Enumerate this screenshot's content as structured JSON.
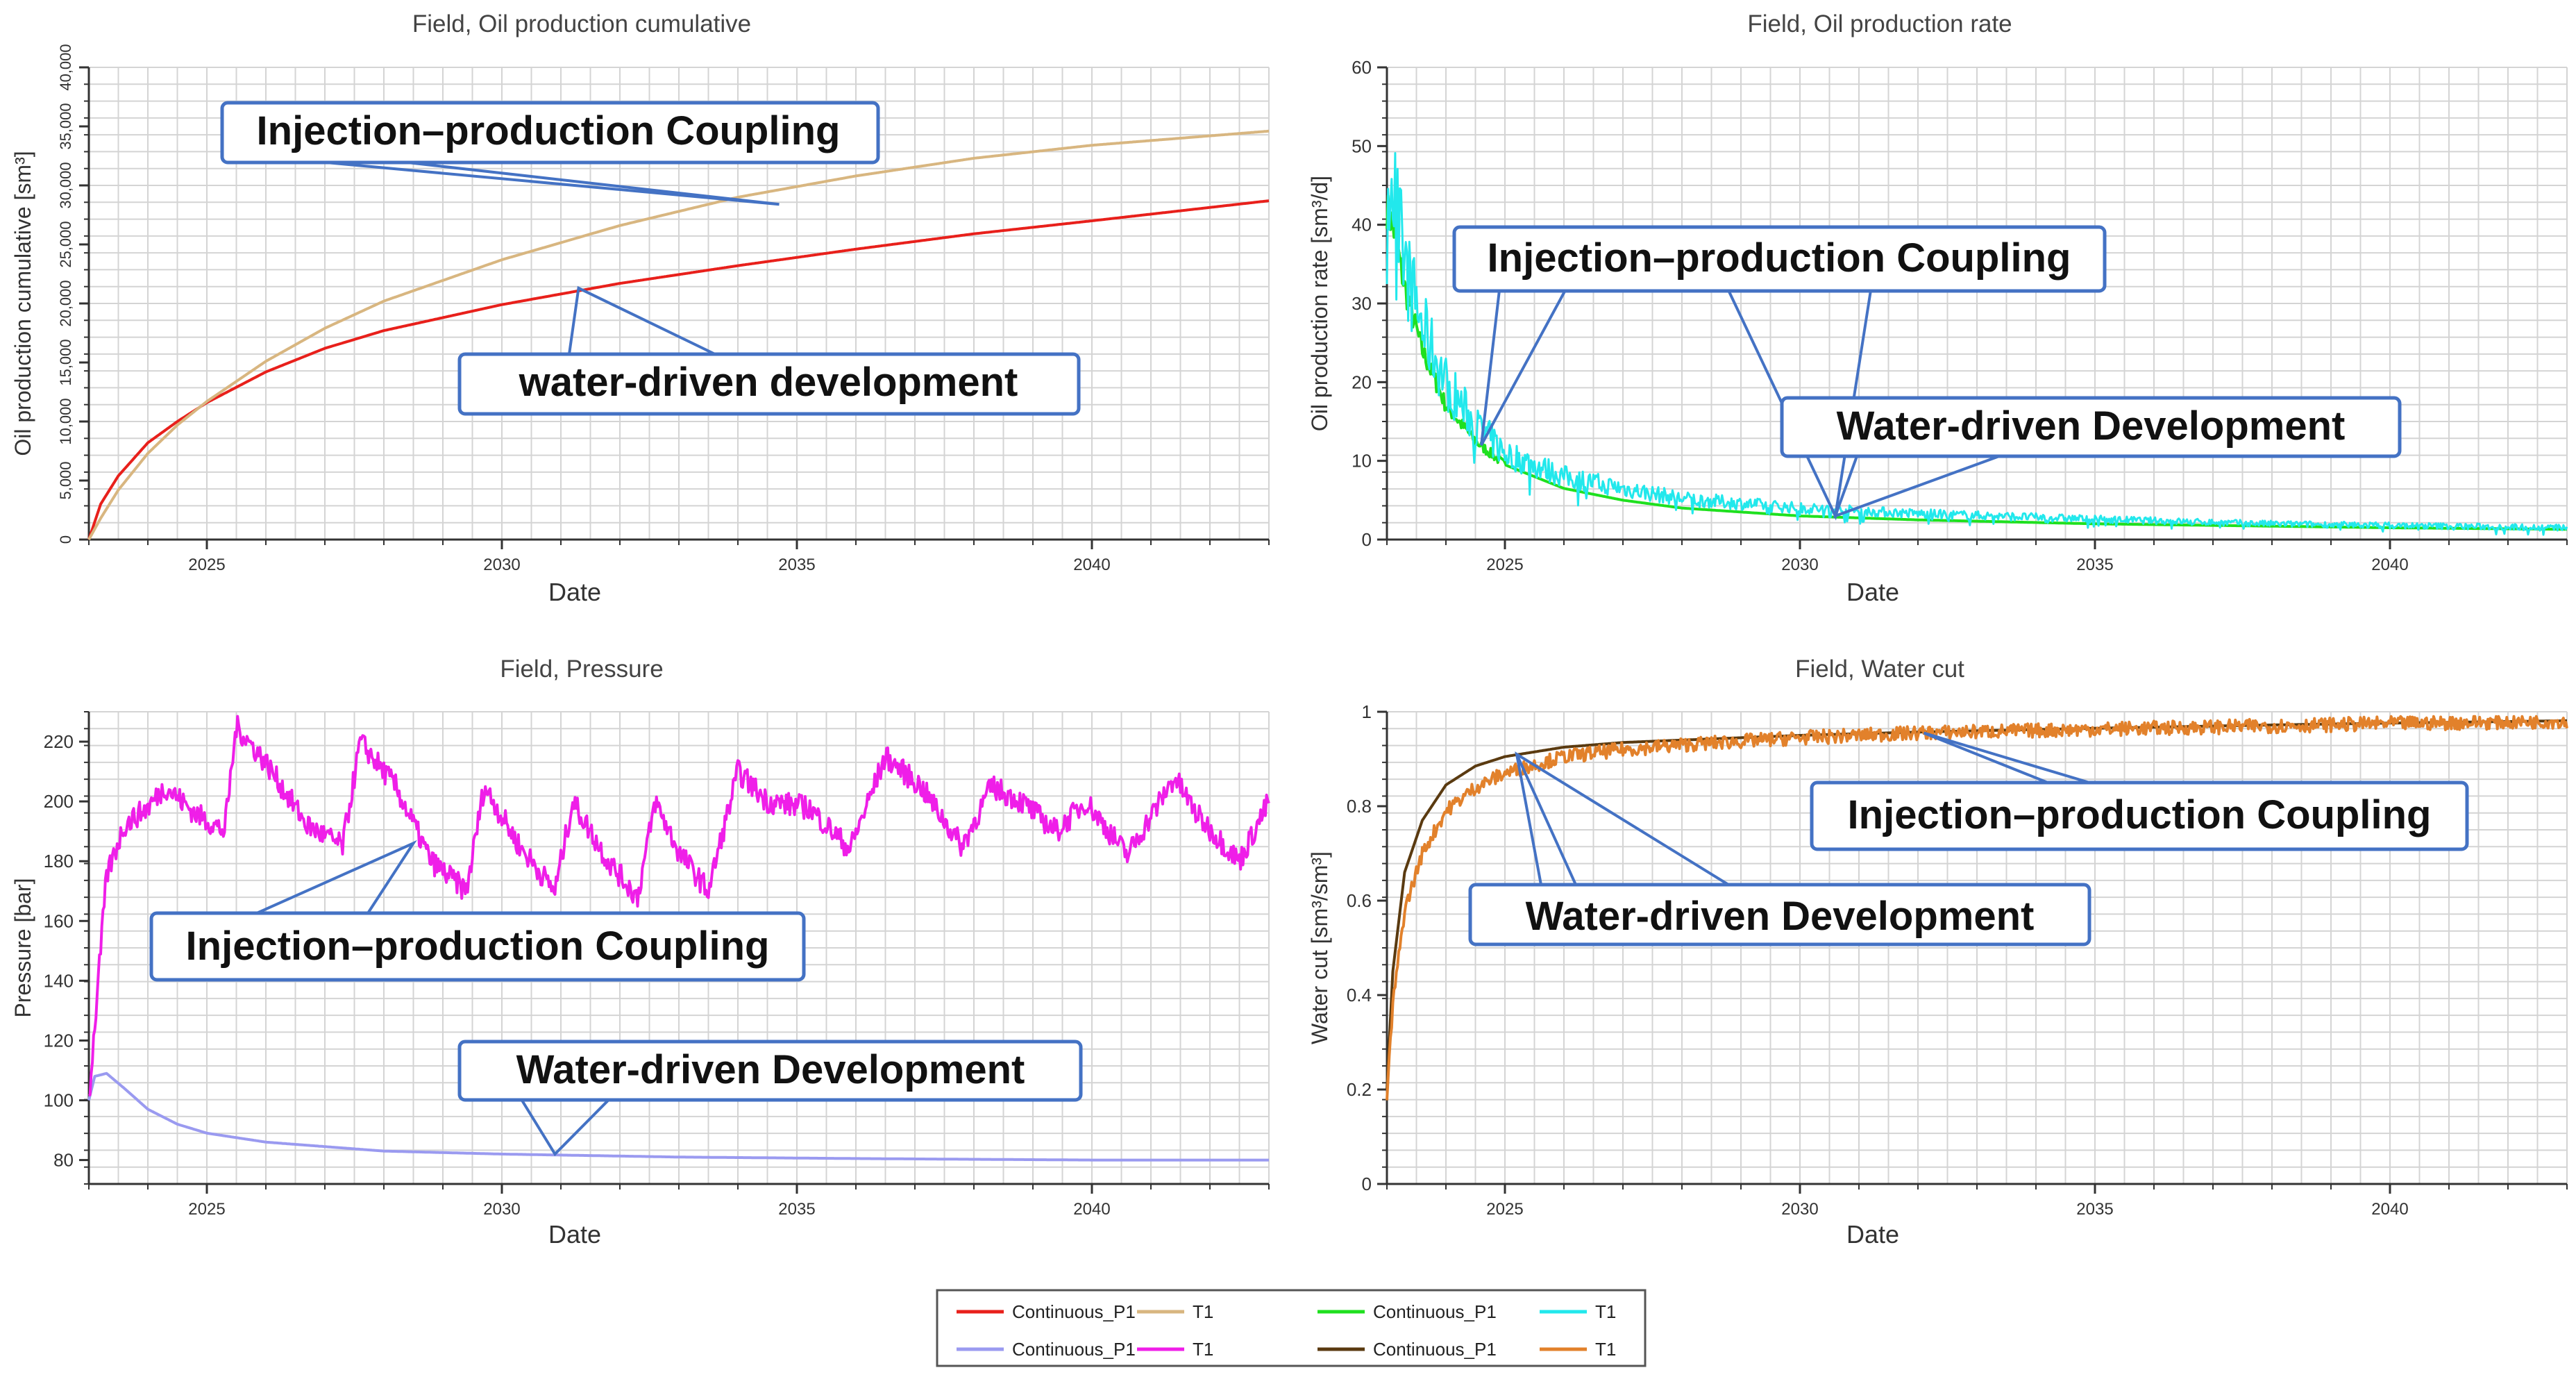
{
  "legend": {
    "rows": [
      [
        {
          "label": "Continuous_P1",
          "color": "#e8201b"
        },
        {
          "label": "T1",
          "color": "#d8b680"
        },
        {
          "label": "Continuous_P1",
          "color": "#1fe01f"
        },
        {
          "label": "T1",
          "color": "#22e8ec"
        }
      ],
      [
        {
          "label": "Continuous_P1",
          "color": "#9a9af0"
        },
        {
          "label": "T1",
          "color": "#ef1ee8"
        },
        {
          "label": "Continuous_P1",
          "color": "#5a3a10"
        },
        {
          "label": "T1",
          "color": "#e2812b"
        }
      ]
    ]
  },
  "colors": {
    "callout_border": "#4472c4",
    "grid": "#d4d4d4",
    "axis": "#333333"
  },
  "chart_data": [
    {
      "type": "line",
      "title": "Field, Oil production cumulative",
      "xlabel": "Date",
      "ylabel": "Oil production cumulative [sm³]",
      "xlim": [
        2023.0,
        2043.0
      ],
      "ylim": [
        0,
        40000
      ],
      "xticks": [
        2025,
        2030,
        2035,
        2040
      ],
      "yticks": [
        0,
        5000,
        10000,
        15000,
        20000,
        25000,
        30000,
        35000,
        40000
      ],
      "ytick_labels": [
        "0",
        "5,000",
        "10,000",
        "15,000",
        "20,000",
        "25,000",
        "30,000",
        "35,000",
        "40,000"
      ],
      "series": [
        {
          "name": "Continuous_P1",
          "color": "#e8201b",
          "x": [
            2023.0,
            2023.2,
            2023.5,
            2024.0,
            2024.5,
            2025.0,
            2026.0,
            2027.0,
            2028.0,
            2030.0,
            2032.0,
            2034.0,
            2036.0,
            2038.0,
            2040.0,
            2043.0
          ],
          "y": [
            0,
            3000,
            5400,
            8200,
            10000,
            11600,
            14200,
            16200,
            17700,
            19900,
            21700,
            23200,
            24600,
            25900,
            27000,
            28700
          ]
        },
        {
          "name": "T1",
          "color": "#d8b680",
          "x": [
            2023.0,
            2023.2,
            2023.5,
            2024.0,
            2024.5,
            2025.0,
            2026.0,
            2027.0,
            2028.0,
            2030.0,
            2032.0,
            2034.0,
            2036.0,
            2038.0,
            2040.0,
            2043.0
          ],
          "y": [
            0,
            1800,
            4200,
            7300,
            9700,
            11700,
            15100,
            17900,
            20200,
            23700,
            26600,
            29000,
            30800,
            32300,
            33400,
            34600
          ]
        }
      ],
      "callouts": [
        {
          "text": "Injection–production Coupling"
        },
        {
          "text": "water-driven development"
        }
      ]
    },
    {
      "type": "line",
      "title": "Field, Oil production rate",
      "xlabel": "Date",
      "ylabel": "Oil production rate [sm³/d]",
      "xlim": [
        2023.0,
        2043.0
      ],
      "ylim": [
        0,
        60
      ],
      "xticks": [
        2025,
        2030,
        2035,
        2040
      ],
      "yticks": [
        0,
        10,
        20,
        30,
        40,
        50,
        60
      ],
      "ytick_labels": [
        "0",
        "10",
        "20",
        "30",
        "40",
        "50",
        "60"
      ],
      "series": [
        {
          "name": "Continuous_P1",
          "color": "#1fe01f",
          "x": [
            2023.0,
            2023.1,
            2023.3,
            2023.6,
            2024.0,
            2024.5,
            2025.0,
            2026.0,
            2027.0,
            2028.0,
            2030.0,
            2032.0,
            2035.0,
            2038.0,
            2040.0,
            2043.0
          ],
          "y": [
            42,
            40,
            32,
            24,
            17,
            12.5,
            9.5,
            6.5,
            5,
            4,
            3,
            2.5,
            2,
            1.7,
            1.5,
            1.3
          ]
        },
        {
          "name": "T1",
          "color": "#22e8ec",
          "x": [
            2023.0,
            2023.1,
            2023.3,
            2023.6,
            2024.0,
            2024.5,
            2025.0,
            2026.0,
            2027.0,
            2028.0,
            2030.0,
            2032.0,
            2035.0,
            2038.0,
            2040.0,
            2043.0
          ],
          "y": [
            50,
            45,
            35,
            27,
            20,
            14.5,
            11,
            8,
            6.5,
            5.2,
            4,
            3.3,
            2.6,
            2,
            1.8,
            1.5
          ]
        }
      ],
      "callouts": [
        {
          "text": "Injection–production Coupling"
        },
        {
          "text": "Water-driven Development"
        }
      ]
    },
    {
      "type": "line",
      "title": "Field, Pressure",
      "xlabel": "Date",
      "ylabel": "Pressure [bar]",
      "xlim": [
        2023.0,
        2043.0
      ],
      "ylim": [
        72,
        230
      ],
      "xticks": [
        2025,
        2030,
        2035,
        2040
      ],
      "yticks": [
        80,
        100,
        120,
        140,
        160,
        180,
        200,
        220
      ],
      "ytick_labels": [
        "80",
        "100",
        "120",
        "140",
        "160",
        "180",
        "200",
        "220"
      ],
      "series": [
        {
          "name": "Continuous_P1",
          "color": "#9a9af0",
          "x": [
            2023.0,
            2023.1,
            2023.3,
            2023.6,
            2024.0,
            2024.5,
            2025.0,
            2026.0,
            2027.0,
            2028.0,
            2030.0,
            2033.0,
            2036.0,
            2040.0,
            2043.0
          ],
          "y": [
            100,
            108,
            109,
            104,
            97,
            92,
            89,
            86,
            84.5,
            83,
            82,
            81,
            80.5,
            80,
            80
          ]
        },
        {
          "name": "T1",
          "color": "#ef1ee8",
          "x": [
            2023.0,
            2023.3,
            2023.6,
            2024.0,
            2024.3,
            2024.8,
            2025.3,
            2025.5,
            2026.0,
            2026.7,
            2027.3,
            2027.6,
            2028.2,
            2028.8,
            2029.4,
            2029.7,
            2030.3,
            2030.9,
            2031.2,
            2031.8,
            2032.3,
            2032.6,
            2033.0,
            2033.5,
            2034.0,
            2034.5,
            2035.2,
            2035.9,
            2036.5,
            2037.1,
            2037.8,
            2038.3,
            2038.8,
            2039.4,
            2039.9,
            2040.6,
            2041.4,
            2041.8,
            2042.5,
            2043.0
          ],
          "y": [
            100,
            175,
            192,
            198,
            205,
            196,
            190,
            225,
            213,
            192,
            185,
            220,
            205,
            180,
            170,
            205,
            185,
            170,
            200,
            180,
            168,
            200,
            183,
            170,
            210,
            200,
            198,
            184,
            215,
            205,
            185,
            205,
            200,
            190,
            200,
            182,
            208,
            195,
            180,
            200
          ]
        }
      ],
      "callouts": [
        {
          "text": "Injection–production Coupling"
        },
        {
          "text": "Water-driven Development"
        }
      ]
    },
    {
      "type": "line",
      "title": "Field, Water cut",
      "xlabel": "Date",
      "ylabel": "Water cut [sm³/sm³]",
      "xlim": [
        2023.0,
        2043.0
      ],
      "ylim": [
        0,
        1
      ],
      "xticks": [
        2025,
        2030,
        2035,
        2040
      ],
      "yticks": [
        0,
        0.2,
        0.4,
        0.6,
        0.8,
        1
      ],
      "ytick_labels": [
        "0",
        "0.2",
        "0.4",
        "0.6",
        "0.8",
        "1"
      ],
      "series": [
        {
          "name": "Continuous_P1",
          "color": "#5a3a10",
          "x": [
            2023.0,
            2023.1,
            2023.3,
            2023.6,
            2024.0,
            2024.5,
            2025.0,
            2026.0,
            2027.0,
            2028.0,
            2030.0,
            2032.0,
            2035.0,
            2038.0,
            2040.0,
            2043.0
          ],
          "y": [
            0.2,
            0.45,
            0.66,
            0.77,
            0.845,
            0.885,
            0.905,
            0.925,
            0.935,
            0.94,
            0.95,
            0.957,
            0.965,
            0.972,
            0.976,
            0.981
          ]
        },
        {
          "name": "T1",
          "color": "#e2812b",
          "x": [
            2023.0,
            2023.1,
            2023.3,
            2023.6,
            2024.0,
            2024.5,
            2025.0,
            2026.0,
            2027.0,
            2028.0,
            2030.0,
            2032.0,
            2035.0,
            2038.0,
            2040.0,
            2043.0
          ],
          "y": [
            0.18,
            0.38,
            0.58,
            0.7,
            0.79,
            0.84,
            0.87,
            0.905,
            0.92,
            0.93,
            0.945,
            0.955,
            0.963,
            0.97,
            0.975,
            0.98
          ]
        }
      ],
      "callouts": [
        {
          "text": "Injection–production Coupling"
        },
        {
          "text": "Water-driven Development"
        }
      ]
    }
  ]
}
